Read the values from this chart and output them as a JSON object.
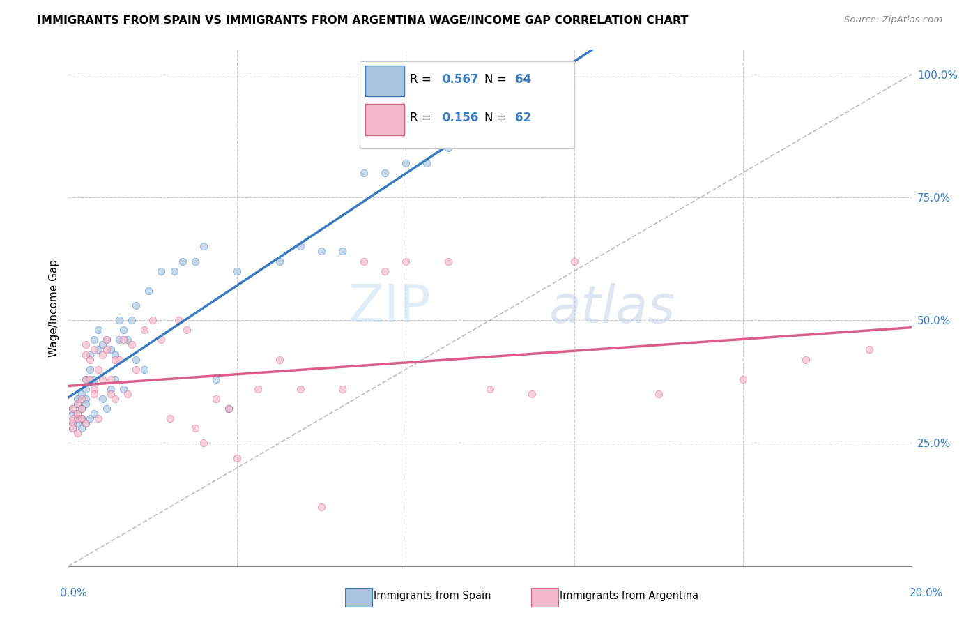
{
  "title": "IMMIGRANTS FROM SPAIN VS IMMIGRANTS FROM ARGENTINA WAGE/INCOME GAP CORRELATION CHART",
  "source": "Source: ZipAtlas.com",
  "ylabel": "Wage/Income Gap",
  "r_spain": 0.567,
  "n_spain": 64,
  "r_argentina": 0.156,
  "n_argentina": 62,
  "color_spain": "#aac4e0",
  "color_argentina": "#f4b8c8",
  "trendline_spain": "#3a7abf",
  "trendline_argentina": "#d95f8a",
  "scatter_alpha": 0.65,
  "scatter_size": 55,
  "spain_x": [
    0.001,
    0.001,
    0.001,
    0.001,
    0.002,
    0.002,
    0.002,
    0.002,
    0.002,
    0.003,
    0.003,
    0.003,
    0.003,
    0.004,
    0.004,
    0.004,
    0.004,
    0.004,
    0.005,
    0.005,
    0.005,
    0.006,
    0.006,
    0.006,
    0.007,
    0.007,
    0.008,
    0.008,
    0.009,
    0.009,
    0.01,
    0.01,
    0.011,
    0.011,
    0.012,
    0.012,
    0.013,
    0.013,
    0.014,
    0.015,
    0.016,
    0.016,
    0.018,
    0.019,
    0.022,
    0.025,
    0.027,
    0.03,
    0.032,
    0.035,
    0.038,
    0.04,
    0.05,
    0.055,
    0.06,
    0.065,
    0.07,
    0.075,
    0.08,
    0.085,
    0.09,
    0.095,
    0.1,
    0.11
  ],
  "spain_y": [
    0.29,
    0.31,
    0.28,
    0.32,
    0.33,
    0.3,
    0.29,
    0.31,
    0.34,
    0.28,
    0.3,
    0.32,
    0.35,
    0.34,
    0.29,
    0.36,
    0.33,
    0.38,
    0.4,
    0.3,
    0.43,
    0.38,
    0.31,
    0.46,
    0.44,
    0.48,
    0.45,
    0.34,
    0.46,
    0.32,
    0.44,
    0.36,
    0.43,
    0.38,
    0.46,
    0.5,
    0.48,
    0.36,
    0.46,
    0.5,
    0.42,
    0.53,
    0.4,
    0.56,
    0.6,
    0.6,
    0.62,
    0.62,
    0.65,
    0.38,
    0.32,
    0.6,
    0.62,
    0.65,
    0.64,
    0.64,
    0.8,
    0.8,
    0.82,
    0.82,
    0.85,
    0.88,
    0.9,
    0.92
  ],
  "argentina_x": [
    0.001,
    0.001,
    0.001,
    0.001,
    0.002,
    0.002,
    0.002,
    0.002,
    0.003,
    0.003,
    0.003,
    0.004,
    0.004,
    0.004,
    0.004,
    0.005,
    0.005,
    0.006,
    0.006,
    0.006,
    0.007,
    0.007,
    0.008,
    0.008,
    0.009,
    0.009,
    0.01,
    0.01,
    0.011,
    0.011,
    0.012,
    0.013,
    0.014,
    0.015,
    0.016,
    0.018,
    0.02,
    0.022,
    0.024,
    0.026,
    0.028,
    0.03,
    0.032,
    0.035,
    0.038,
    0.04,
    0.045,
    0.05,
    0.055,
    0.06,
    0.065,
    0.07,
    0.075,
    0.08,
    0.09,
    0.1,
    0.11,
    0.12,
    0.14,
    0.16,
    0.175,
    0.19
  ],
  "argentina_y": [
    0.3,
    0.29,
    0.32,
    0.28,
    0.33,
    0.27,
    0.3,
    0.31,
    0.34,
    0.3,
    0.32,
    0.38,
    0.29,
    0.45,
    0.43,
    0.42,
    0.38,
    0.44,
    0.36,
    0.35,
    0.4,
    0.3,
    0.43,
    0.38,
    0.44,
    0.46,
    0.35,
    0.38,
    0.42,
    0.34,
    0.42,
    0.46,
    0.35,
    0.45,
    0.4,
    0.48,
    0.5,
    0.46,
    0.3,
    0.5,
    0.48,
    0.28,
    0.25,
    0.34,
    0.32,
    0.22,
    0.36,
    0.42,
    0.36,
    0.12,
    0.36,
    0.62,
    0.6,
    0.62,
    0.62,
    0.36,
    0.35,
    0.62,
    0.35,
    0.38,
    0.42,
    0.44
  ],
  "xmin": 0.0,
  "xmax": 0.2,
  "ymin": 0.0,
  "ymax": 1.05,
  "yticks": [
    0.25,
    0.5,
    0.75,
    1.0
  ],
  "ytick_labels": [
    "25.0%",
    "50.0%",
    "75.0%",
    "100.0%"
  ]
}
